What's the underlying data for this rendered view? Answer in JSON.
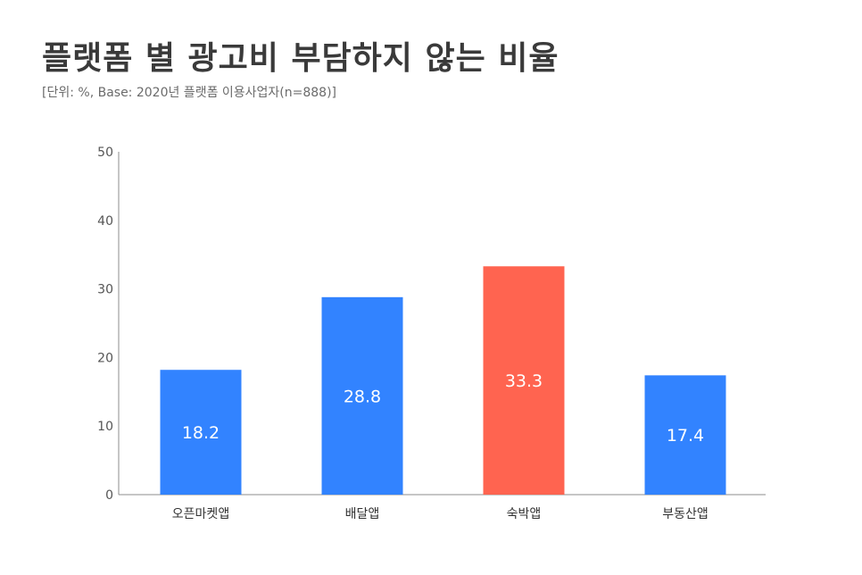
{
  "title": "플랫폼 별 광고비 부담하지 않는 비율",
  "subtitle": "[단위: %, Base: 2020년 플랫폼 이용사업자(n=888)]",
  "colors": {
    "default_bar": "#3283ff",
    "highlight_bar": "#ff6450",
    "axis": "#8c8c8c",
    "title": "#3a3a3a"
  },
  "chart_data": {
    "type": "bar",
    "categories": [
      "오픈마켓앱",
      "배달앱",
      "숙박앱",
      "부동산앱"
    ],
    "values": [
      18.2,
      28.8,
      33.3,
      17.4
    ],
    "value_labels": [
      "18.2",
      "28.8",
      "33.3",
      "17.4"
    ],
    "highlight_index": 2,
    "ylim": [
      0,
      50
    ],
    "yticks": [
      "0",
      "10",
      "20",
      "30",
      "40",
      "50"
    ],
    "grid": false,
    "legend": "none"
  }
}
